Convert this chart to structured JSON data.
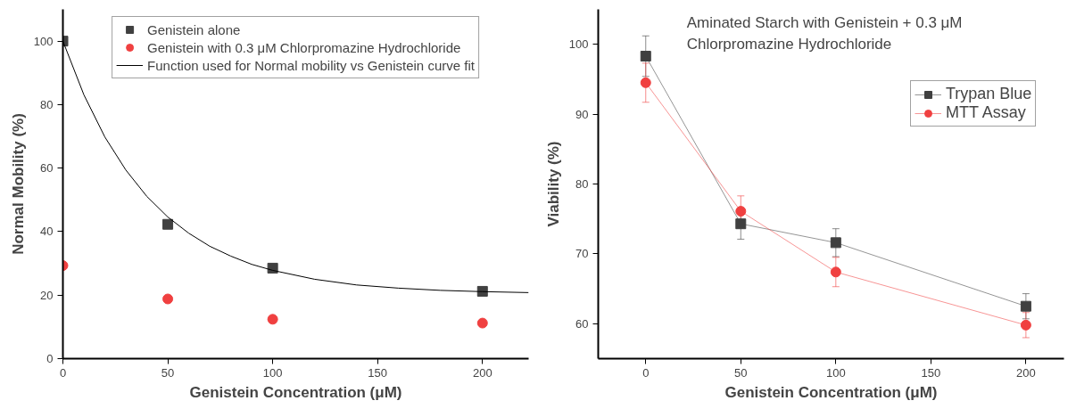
{
  "chart_data": [
    {
      "type": "scatter",
      "xlabel": "Genistein Concentration (μM)",
      "ylabel": "Normal Mobility (%)",
      "xlim": [
        0,
        222
      ],
      "ylim": [
        0,
        110
      ],
      "xticks": [
        0,
        50,
        100,
        150,
        200
      ],
      "yticks": [
        0,
        20,
        40,
        60,
        80,
        100
      ],
      "grid": false,
      "legend": "top",
      "x": [
        0,
        50,
        100,
        200
      ],
      "series": [
        {
          "name": "Genistein alone",
          "color": "#404040",
          "marker": "square",
          "values": [
            100,
            42.3,
            28.5,
            21.2
          ]
        },
        {
          "name": "Genistein with 0.3 μM Chlorpromazine Hydrochloride",
          "color": "#f04040",
          "marker": "circle",
          "values": [
            29.3,
            18.8,
            12.4,
            11.2
          ]
        },
        {
          "name": "Function used for Normal mobility vs Genistein curve fit",
          "type": "line",
          "color": "#000000",
          "marker": "none",
          "x": [
            0,
            10,
            20,
            30,
            40,
            50,
            60,
            70,
            80,
            90,
            100,
            120,
            140,
            160,
            180,
            200,
            222
          ],
          "values": [
            100,
            83.1,
            69.8,
            59.4,
            51.1,
            44.6,
            39.5,
            35.4,
            32.3,
            29.7,
            27.8,
            25.0,
            23.2,
            22.2,
            21.5,
            21.1,
            20.8
          ]
        }
      ]
    },
    {
      "type": "line",
      "title": "Aminated Starch with Genistein + 0.3 μM\nChlorpromazine Hydrochloride",
      "xlabel": "Genistein Concentration (μM)",
      "ylabel": "Viability (%)",
      "xlim": [
        -25,
        220
      ],
      "ylim": [
        55,
        105
      ],
      "xticks": [
        0,
        50,
        100,
        150,
        200
      ],
      "yticks": [
        60,
        70,
        80,
        90,
        100
      ],
      "grid": false,
      "legend": "top right",
      "x": [
        0,
        50,
        100,
        200
      ],
      "series": [
        {
          "name": "Trypan Blue",
          "color": "#404040",
          "marker": "square",
          "values": [
            98.3,
            74.3,
            71.6,
            62.5
          ],
          "errors": [
            2.9,
            2.2,
            2.0,
            1.8
          ]
        },
        {
          "name": "MTT Assay",
          "color": "#f04040",
          "marker": "circle",
          "values": [
            94.5,
            76.1,
            67.4,
            59.8
          ],
          "errors": [
            2.8,
            2.2,
            2.1,
            1.8
          ]
        }
      ]
    }
  ]
}
